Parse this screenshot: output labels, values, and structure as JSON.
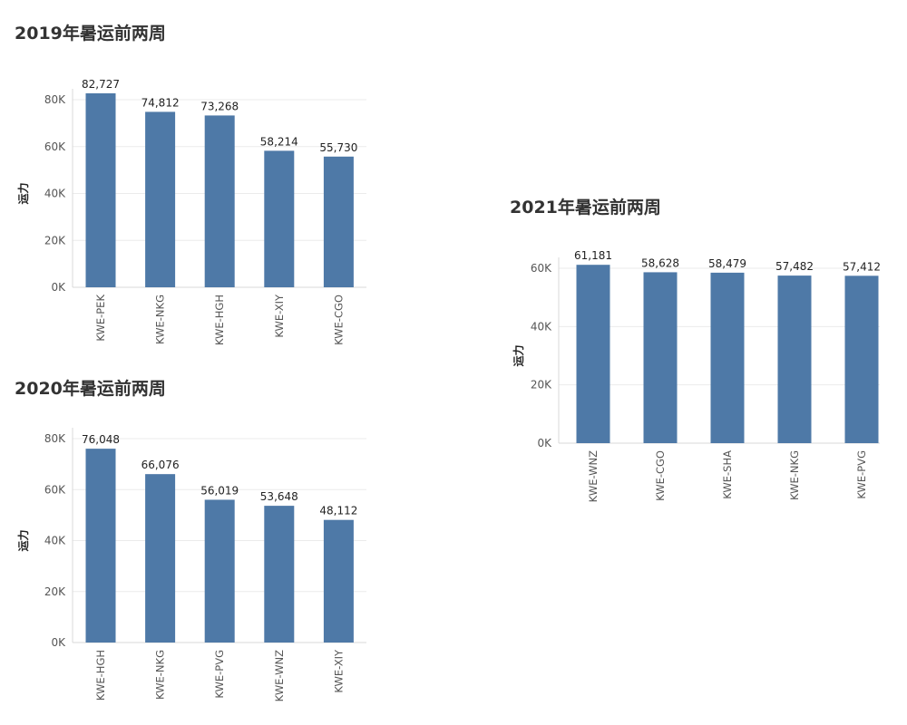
{
  "colors": {
    "bar": "#4e79a7",
    "grid": "#ebebeb",
    "axis": "#d9d9d9",
    "tick_text": "#555555",
    "label_text": "#222222",
    "title_text": "#333333"
  },
  "charts": [
    {
      "title": "2019年暑运前两周"
    },
    {
      "title": "2020年暑运前两周"
    },
    {
      "title": "2021年暑运前两周"
    }
  ],
  "chart_data": [
    {
      "type": "bar",
      "title": "2019年暑运前两周",
      "ylabel": "运力",
      "xlabel": "",
      "categories": [
        "KWE-PEK",
        "KWE-NKG",
        "KWE-HGH",
        "KWE-XIY",
        "KWE-CGO"
      ],
      "values": [
        82727,
        74812,
        73268,
        58214,
        55730
      ],
      "value_labels": [
        "82,727",
        "74,812",
        "73,268",
        "58,214",
        "55,730"
      ],
      "yticks": [
        0,
        20000,
        40000,
        60000,
        80000
      ],
      "ytick_labels": [
        "0K",
        "20K",
        "40K",
        "60K",
        "80K"
      ],
      "ylim": [
        0,
        80000
      ],
      "grid": true
    },
    {
      "type": "bar",
      "title": "2020年暑运前两周",
      "ylabel": "运力",
      "xlabel": "",
      "categories": [
        "KWE-HGH",
        "KWE-NKG",
        "KWE-PVG",
        "KWE-WNZ",
        "KWE-XIY"
      ],
      "values": [
        76048,
        66076,
        56019,
        53648,
        48112
      ],
      "value_labels": [
        "76,048",
        "66,076",
        "56,019",
        "53,648",
        "48,112"
      ],
      "yticks": [
        0,
        20000,
        40000,
        60000,
        80000
      ],
      "ytick_labels": [
        "0K",
        "20K",
        "40K",
        "60K",
        "80K"
      ],
      "ylim": [
        0,
        80000
      ],
      "grid": true
    },
    {
      "type": "bar",
      "title": "2021年暑运前两周",
      "ylabel": "运力",
      "xlabel": "",
      "categories": [
        "KWE-WNZ",
        "KWE-CGO",
        "KWE-SHA",
        "KWE-NKG",
        "KWE-PVG"
      ],
      "values": [
        61181,
        58628,
        58479,
        57482,
        57412
      ],
      "value_labels": [
        "61,181",
        "58,628",
        "58,479",
        "57,482",
        "57,412"
      ],
      "yticks": [
        0,
        20000,
        40000,
        60000
      ],
      "ytick_labels": [
        "0K",
        "20K",
        "40K",
        "60K"
      ],
      "ylim": [
        0,
        60000
      ],
      "grid": true
    }
  ]
}
